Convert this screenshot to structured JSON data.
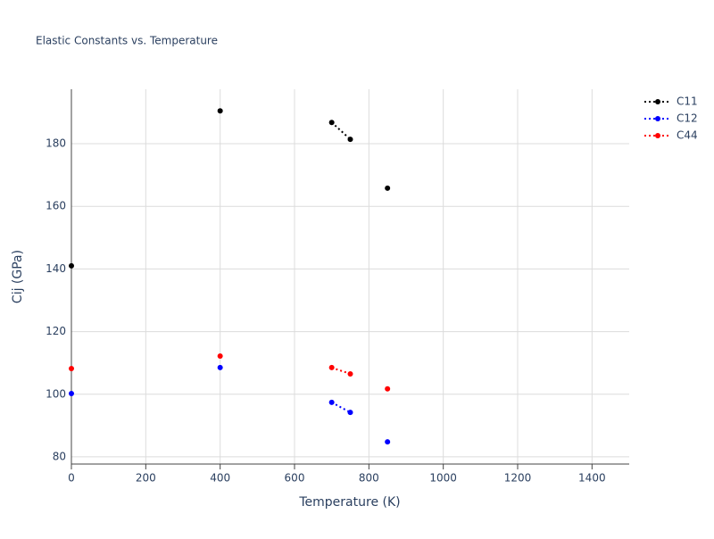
{
  "chart_data": {
    "type": "line",
    "title": "Elastic Constants vs. Temperature",
    "x_label": "Temperature (K)",
    "y_label": "Cij (GPa)",
    "x": [
      0,
      null,
      400,
      null,
      700,
      750,
      null,
      850
    ],
    "series": [
      {
        "name": "C11",
        "color": "#000000",
        "values": [
          141,
          null,
          190.5,
          null,
          186.8,
          181.4,
          null,
          165.8
        ]
      },
      {
        "name": "C12",
        "color": "#0000ff",
        "values": [
          100.2,
          null,
          108.5,
          null,
          97.4,
          94.2,
          null,
          84.8
        ]
      },
      {
        "name": "C44",
        "color": "#ff0000",
        "values": [
          108.2,
          null,
          112.2,
          null,
          108.5,
          106.5,
          null,
          101.7
        ]
      }
    ],
    "xlim": [
      0,
      1500
    ],
    "xticks": [
      0,
      200,
      400,
      600,
      800,
      1000,
      1200,
      1400
    ],
    "ylim": [
      77.7,
      197.4
    ],
    "yticks": [
      80,
      100,
      120,
      140,
      160,
      180
    ],
    "grid": true,
    "legend": "right",
    "line_style": "dotted"
  }
}
